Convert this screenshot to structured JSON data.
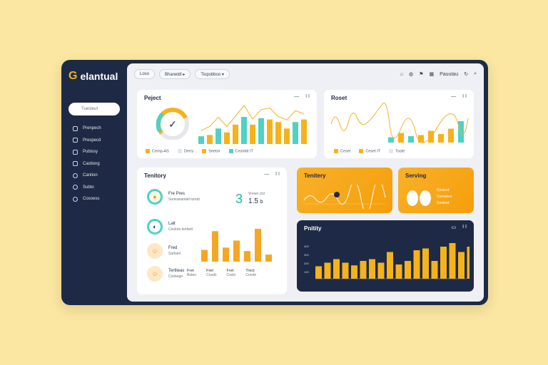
{
  "app": {
    "logo_glyph": "G",
    "title": "elantual"
  },
  "sidebar": {
    "search_label": "Tuesteut",
    "items": [
      {
        "label": "Prenpech"
      },
      {
        "label": "Prespecd"
      },
      {
        "label": "Pubissy"
      },
      {
        "label": "Castiong"
      },
      {
        "label": "Cantion"
      },
      {
        "label": "Subto"
      },
      {
        "label": "Cosoess"
      }
    ]
  },
  "topbar": {
    "pills": [
      "Loso",
      "Bhanetdl ▸",
      "Tiopsbboo ▾"
    ],
    "right_label": "Pauutau"
  },
  "project_card": {
    "title": "Peject",
    "ctrl": [
      "—",
      "I I"
    ],
    "legend": [
      "Cemp-AS",
      "Derry",
      "Seetor",
      "Cesnbtt IT"
    ],
    "gauge_value": 0.72,
    "bar_values": [
      12,
      14,
      24,
      18,
      30,
      42,
      30,
      40,
      38,
      34,
      24,
      34,
      38
    ],
    "bar_colors": [
      "#4fd1c5",
      "#f5b21b",
      "#4fd1c5",
      "#f5b21b",
      "#f5b21b",
      "#4fd1c5",
      "#f5b21b",
      "#4fd1c5",
      "#f5b21b",
      "#f5b21b",
      "#f5b21b",
      "#4fd1c5",
      "#f5b21b"
    ]
  },
  "roset_card": {
    "title": "Roset",
    "ctrl": [
      "—",
      "I I"
    ],
    "legend": [
      "Ceset",
      "Ceset IT",
      "Toste"
    ],
    "bar_values": [
      10,
      18,
      12,
      14,
      22,
      16,
      26,
      40
    ],
    "bar_colors": [
      "#4fd1c5",
      "#f5b21b",
      "#4fd1c5",
      "#f5b21b",
      "#f5b21b",
      "#f5b21b",
      "#f5b21b",
      "#4fd1c5"
    ]
  },
  "territory_card": {
    "title": "Tenitory",
    "ctrl": [
      "—",
      "I I"
    ],
    "rows": [
      {
        "name": "Fre Pres",
        "sub": "Sorteanantatl tumtd"
      },
      {
        "name": "Lalt",
        "sub": "Cesfote tenfartl"
      },
      {
        "name": "Fred",
        "sub": "Sarbanl"
      },
      {
        "name": "Tertlieas",
        "sub": "Cesbege"
      }
    ],
    "stat_big": "3",
    "stat_value": "1.5",
    "stat_unit": "b",
    "stat_caption": "Vreser clcl",
    "col_labels": [
      "Fret",
      "Fret",
      "Fret",
      "Trect"
    ],
    "col_sub": [
      "Buteo",
      "Cosdo",
      "Coslo",
      "Crsote"
    ],
    "bar_values": [
      10,
      26,
      12,
      18,
      9,
      28,
      6
    ]
  },
  "tenitory_orange": {
    "title": "Tenitery"
  },
  "serving_card": {
    "title": "Serving",
    "lines": [
      "Cestoot",
      "Cemabee",
      "Cestoot"
    ]
  },
  "pnitity_card": {
    "title": "Pnitity",
    "bar_values": [
      14,
      18,
      22,
      18,
      15,
      20,
      22,
      18,
      30,
      16,
      20,
      32,
      34,
      20,
      36,
      40,
      30,
      36
    ],
    "axis_labels": [
      "400",
      "300",
      "200",
      "100"
    ]
  }
}
